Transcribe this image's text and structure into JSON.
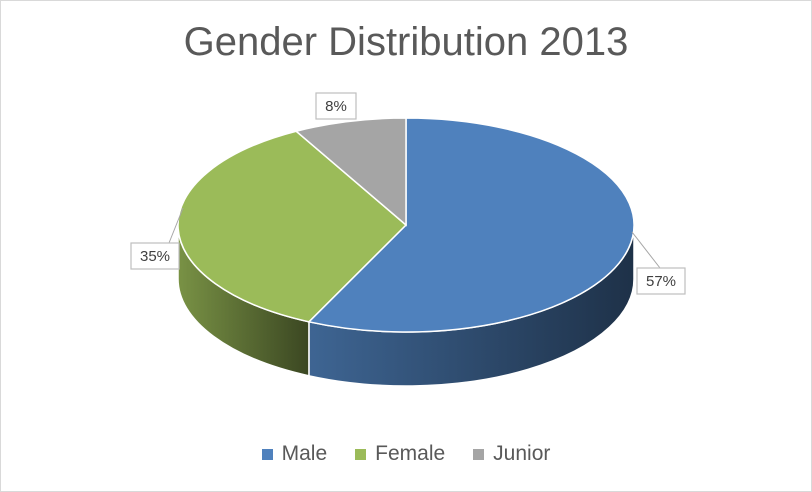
{
  "chart_data": {
    "type": "pie",
    "title": "Gender Distribution 2013",
    "categories": [
      "Male",
      "Female",
      "Junior"
    ],
    "values": [
      57,
      35,
      8
    ],
    "labels": [
      "57%",
      "35%",
      "8%"
    ],
    "colors": [
      "#4f81bd",
      "#9bbb59",
      "#a5a5a5"
    ],
    "legend_position": "bottom",
    "style": "3d"
  }
}
